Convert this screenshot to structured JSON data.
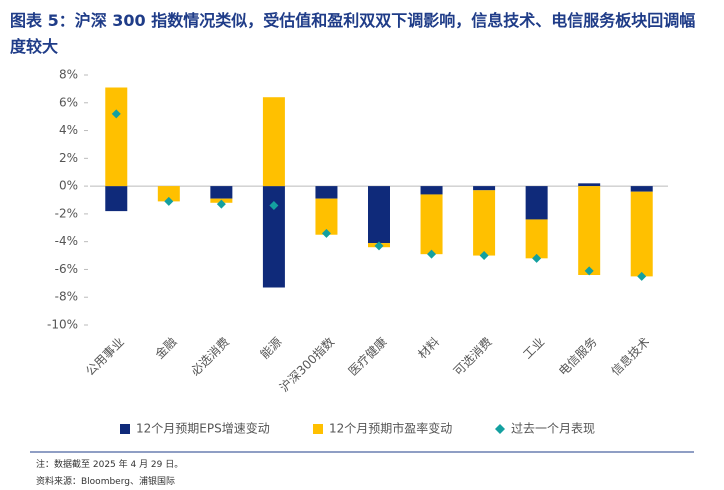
{
  "chart_data": {
    "type": "bar",
    "title": "图表 5：沪深 300 指数情况类似，受估值和盈利双双下调影响，信息技术、电信服务板块回调幅度较大",
    "note": "注：数据截至 2025 年 4 月 29 日。",
    "source": "资料来源：Bloomberg、浦银国际",
    "categories": [
      "公用事业",
      "金融",
      "必选消费",
      "能源",
      "沪深300指数",
      "医疗健康",
      "材料",
      "可选消费",
      "工业",
      "电信服务",
      "信息技术"
    ],
    "series": [
      {
        "name": "12个月预期EPS增速变动",
        "color": "#0f2a7a",
        "values": [
          -1.8,
          0,
          -0.9,
          -7.3,
          -0.9,
          -4.1,
          -0.6,
          -0.3,
          -2.4,
          0.2,
          -0.4
        ]
      },
      {
        "name": "12个月预期市盈率变动",
        "color": "#ffc000",
        "values": [
          7.1,
          -1.1,
          -0.3,
          6.4,
          -2.6,
          -0.3,
          -4.3,
          -4.7,
          -2.8,
          -6.4,
          -6.1
        ]
      },
      {
        "name": "过去一个月表现",
        "color": "#14a0a0",
        "marker": "diamond",
        "values": [
          5.2,
          -1.1,
          -1.3,
          -1.4,
          -3.4,
          -4.3,
          -4.9,
          -5.0,
          -5.2,
          -6.1,
          -6.5
        ]
      }
    ],
    "ylim": [
      -10,
      8
    ],
    "yticks": [
      {
        "value": 8,
        "label": "8%"
      },
      {
        "value": 6,
        "label": "6%"
      },
      {
        "value": 4,
        "label": "4%"
      },
      {
        "value": 2,
        "label": "2%"
      },
      {
        "value": 0,
        "label": "0%"
      },
      {
        "value": -2,
        "label": "-2%"
      },
      {
        "value": -4,
        "label": "-4%"
      },
      {
        "value": -6,
        "label": "-6%"
      },
      {
        "value": -8,
        "label": "-8%"
      },
      {
        "value": -10,
        "label": "-10%"
      }
    ],
    "grid": false,
    "legend": "bottom"
  }
}
